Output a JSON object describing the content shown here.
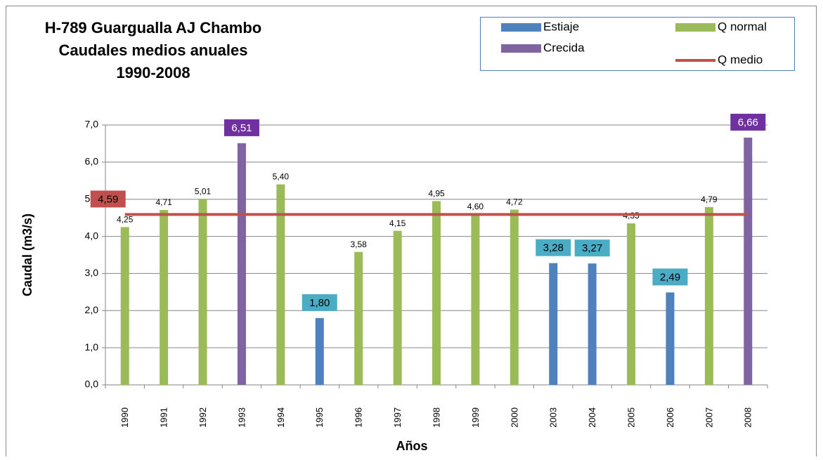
{
  "chart_data": {
    "type": "bar",
    "title": [
      "H-789 Guargualla AJ Chambo",
      "Caudales medios anuales",
      "1990-2008"
    ],
    "x_label": "Años",
    "y_label": "Caudal (m3/s)",
    "categories": [
      "1990",
      "1991",
      "1992",
      "1993",
      "1994",
      "1995",
      "1996",
      "1997",
      "1998",
      "1999",
      "2000",
      "2003",
      "2004",
      "2005",
      "2006",
      "2007",
      "2008"
    ],
    "series": [
      {
        "name": "Estiaje",
        "color": "#4f81bd",
        "label_box": "#4bacc6",
        "values": [
          null,
          null,
          null,
          null,
          null,
          1.8,
          null,
          null,
          null,
          null,
          null,
          3.28,
          3.27,
          null,
          2.49,
          null,
          null
        ],
        "value_labels": [
          null,
          null,
          null,
          null,
          null,
          "1,80",
          null,
          null,
          null,
          null,
          null,
          "3,28",
          "3,27",
          null,
          "2,49",
          null,
          null
        ]
      },
      {
        "name": "Q normal",
        "color": "#9bbb59",
        "values": [
          4.25,
          4.71,
          5.01,
          null,
          5.4,
          null,
          3.58,
          4.15,
          4.95,
          4.6,
          4.72,
          null,
          null,
          4.35,
          null,
          4.79,
          null
        ],
        "value_labels": [
          "4,25",
          "4,71",
          "5,01",
          null,
          "5,40",
          null,
          "3,58",
          "4,15",
          "4,95",
          "4,60",
          "4,72",
          null,
          null,
          "4,35",
          null,
          "4,79",
          null
        ]
      },
      {
        "name": "Crecida",
        "color": "#8064a2",
        "label_box": "#7030a0",
        "values": [
          null,
          null,
          null,
          6.51,
          null,
          null,
          null,
          null,
          null,
          null,
          null,
          null,
          null,
          null,
          null,
          null,
          6.66
        ],
        "value_labels": [
          null,
          null,
          null,
          "6,51",
          null,
          null,
          null,
          null,
          null,
          null,
          null,
          null,
          null,
          null,
          null,
          null,
          "6,66"
        ]
      },
      {
        "name": "Q medio",
        "color": "#c0504d",
        "kind": "line",
        "values": [
          4.59,
          4.59,
          4.59,
          4.59,
          4.59,
          4.59,
          4.59,
          4.59,
          4.59,
          4.59,
          4.59,
          4.59,
          4.59,
          4.59,
          4.59,
          4.59,
          4.59
        ],
        "value_labels": [
          "4,59",
          null,
          null,
          null,
          null,
          null,
          null,
          null,
          null,
          null,
          null,
          null,
          null,
          null,
          null,
          null,
          null
        ]
      }
    ],
    "ylim": [
      0,
      7
    ],
    "yticks": [
      {
        "value": 0,
        "label": "0,0"
      },
      {
        "value": 1,
        "label": "1,0"
      },
      {
        "value": 2,
        "label": "2,0"
      },
      {
        "value": 3,
        "label": "3,0"
      },
      {
        "value": 4,
        "label": "4,0"
      },
      {
        "value": 5,
        "label": "5,0"
      },
      {
        "value": 6,
        "label": "6,0"
      },
      {
        "value": 7,
        "label": "7,0"
      }
    ],
    "grid": true,
    "legend": "top-right"
  }
}
